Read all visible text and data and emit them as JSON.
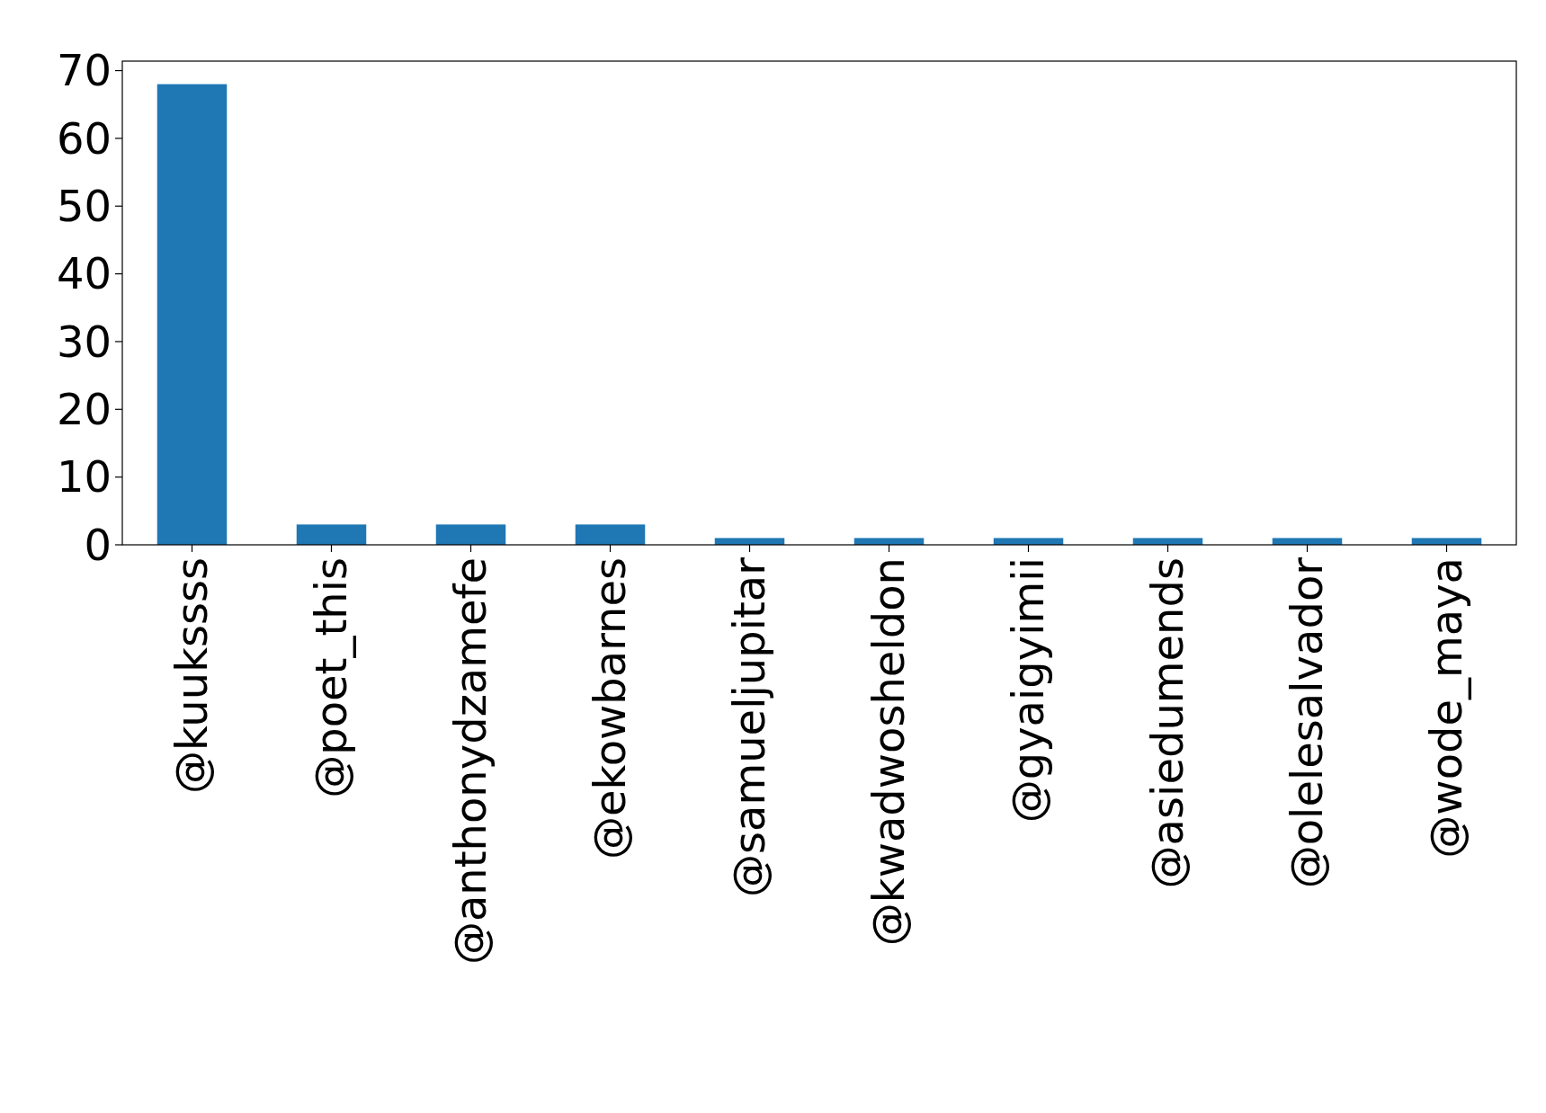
{
  "chart_data": {
    "type": "bar",
    "categories": [
      "@kuukssss",
      "@poet_this",
      "@anthonydzamefe",
      "@ekowbarnes",
      "@samueljupitar",
      "@kwadwosheldon",
      "@gyaigyimii",
      "@asiedumends",
      "@olelesalvador",
      "@wode_maya"
    ],
    "values": [
      68,
      3,
      3,
      3,
      1,
      1,
      1,
      1,
      1,
      1
    ],
    "color": "#1f77b4",
    "ylim": [
      0,
      71.4
    ],
    "yticks": [
      0,
      10,
      20,
      30,
      40,
      50,
      60,
      70
    ],
    "grid": false
  }
}
